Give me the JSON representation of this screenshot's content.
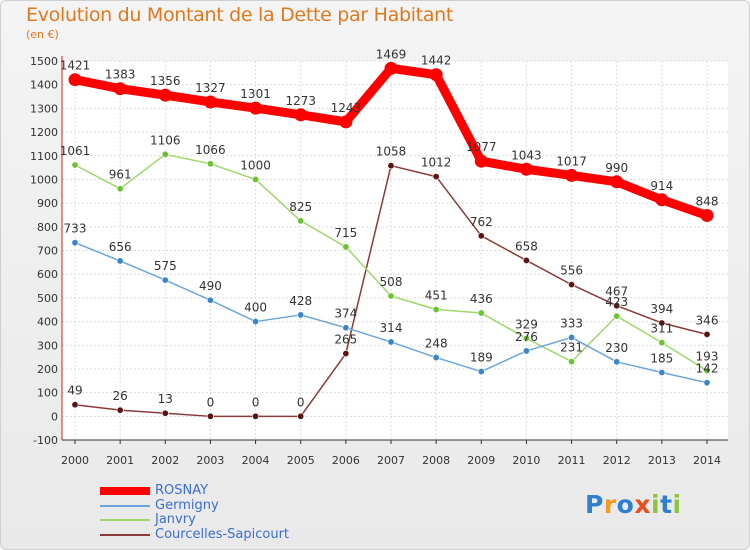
{
  "header": {
    "title": "Evolution du Montant de la Dette par Habitant",
    "subtitle": "(en €)"
  },
  "logo": {
    "text": "Proxiti",
    "letter_colors": [
      "#2f7fd0",
      "#f29b25",
      "#2f7fd0",
      "#e84f1c",
      "#8cc43e",
      "#2f7fd0",
      "#8cc43e"
    ]
  },
  "chart_data": {
    "type": "line",
    "title": "Evolution du Montant de la Dette par Habitant",
    "ylabel": "(en €)",
    "xlabel": "",
    "x": [
      "2000",
      "2001",
      "2002",
      "2003",
      "2004",
      "2005",
      "2006",
      "2007",
      "2008",
      "2009",
      "2010",
      "2011",
      "2012",
      "2013",
      "2014"
    ],
    "ylim": [
      -100,
      1500
    ],
    "yticks": [
      -100,
      0,
      100,
      200,
      300,
      400,
      500,
      600,
      700,
      800,
      900,
      1000,
      1100,
      1200,
      1300,
      1400,
      1500
    ],
    "grid": true,
    "legend_position": "bottom-left",
    "series": [
      {
        "name": "ROSNAY",
        "color": "#ff0000",
        "dot_color": "#ff0000",
        "emphasis": true,
        "values": [
          1421,
          1383,
          1356,
          1327,
          1301,
          1273,
          1243,
          1469,
          1442,
          1077,
          1043,
          1017,
          990,
          914,
          848
        ],
        "labels": [
          "1421",
          "1383",
          "1356",
          "1327",
          "1301",
          "1273",
          "1243",
          "1469",
          "1442",
          "1077",
          "1043",
          "1017",
          "990",
          "914",
          "848"
        ]
      },
      {
        "name": "Germigny",
        "color": "#6aa6d9",
        "dot_color": "#3c86c8",
        "values": [
          733,
          656,
          575,
          490,
          400,
          428,
          374,
          314,
          248,
          189,
          276,
          333,
          230,
          185,
          142
        ],
        "labels": [
          "733",
          "656",
          "575",
          "490",
          "400",
          "428",
          "374",
          "314",
          "248",
          "189",
          "276",
          "333",
          "230",
          "185",
          "142"
        ]
      },
      {
        "name": "Janvry",
        "color": "#9dd86a",
        "dot_color": "#6cc232",
        "values": [
          1061,
          961,
          1106,
          1066,
          1000,
          825,
          715,
          508,
          451,
          436,
          329,
          231,
          423,
          311,
          193
        ],
        "labels": [
          "1061",
          "961",
          "1106",
          "1066",
          "1000",
          "825",
          "715",
          "508",
          "451",
          "436",
          "329",
          "231",
          "423",
          "311",
          "193"
        ]
      },
      {
        "name": "Courcelles-Sapicourt",
        "color": "#8b3a3a",
        "dot_color": "#5a1414",
        "values": [
          49,
          26,
          13,
          0,
          0,
          0,
          265,
          1058,
          1012,
          762,
          658,
          556,
          467,
          394,
          346
        ],
        "labels": [
          "49",
          "26",
          "13",
          "0",
          "0",
          "0",
          "265",
          "1058",
          "1012",
          "762",
          "658",
          "556",
          "467",
          "394",
          "346"
        ]
      }
    ]
  }
}
